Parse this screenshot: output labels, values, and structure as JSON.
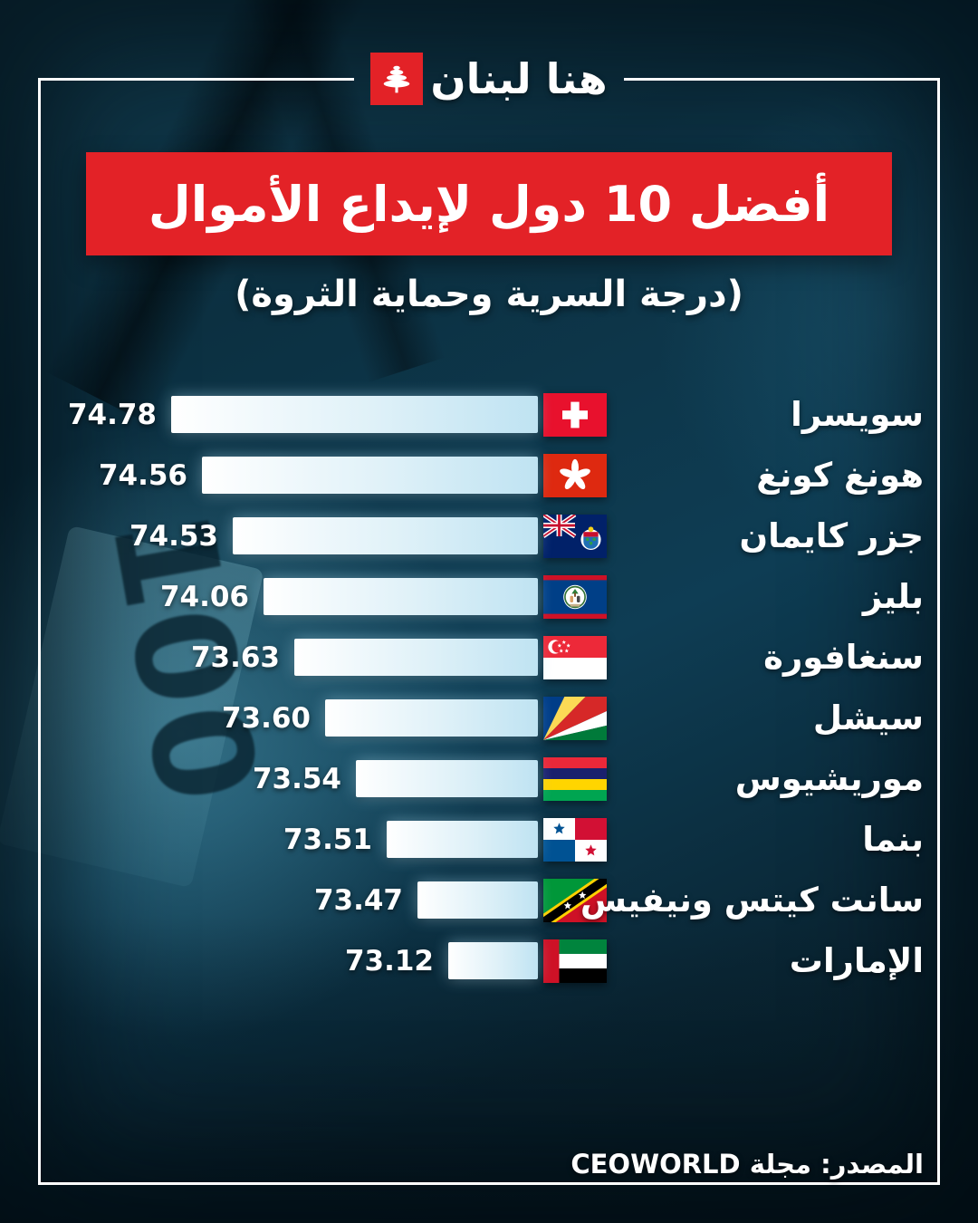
{
  "logo": {
    "brand": "هنا لبنان",
    "cedar_icon": "lebanon-cedar"
  },
  "header": {
    "title": "أفضل 10 دول لإيداع الأموال",
    "subtitle": "(درجة السرية وحماية الثروة)"
  },
  "chart_data": {
    "type": "bar",
    "orientation": "horizontal",
    "direction": "rtl",
    "title": "أفضل 10 دول لإيداع الأموال",
    "subtitle": "(درجة السرية وحماية الثروة)",
    "legend": "none",
    "grid": false,
    "value_range_hint": [
      73,
      75
    ],
    "categories": [
      "سويسرا",
      "هونغ كونغ",
      "جزر كايمان",
      "بليز",
      "سنغافورة",
      "سيشل",
      "موريشيوس",
      "بنما",
      "سانت كيتس ونيفيس",
      "الإمارات"
    ],
    "values": [
      74.78,
      74.56,
      74.53,
      74.06,
      73.63,
      73.6,
      73.54,
      73.51,
      73.47,
      73.12
    ],
    "value_labels": [
      "74.78",
      "74.56",
      "74.53",
      "74.06",
      "73.63",
      "73.60",
      "73.54",
      "73.51",
      "73.47",
      "73.12"
    ],
    "flags": [
      "switzerland",
      "hong-kong",
      "cayman-islands",
      "belize",
      "singapore",
      "seychelles",
      "mauritius",
      "panama",
      "saint-kitts-nevis",
      "uae"
    ]
  },
  "footer": {
    "source": "المصدر: مجلة CEOWORLD"
  },
  "colors": {
    "banner_red": "#e32227",
    "bar_fill_start": "#ffffff",
    "bar_fill_end": "#bfe3f2",
    "text": "#ffffff",
    "background_dark": "#0c3041"
  }
}
